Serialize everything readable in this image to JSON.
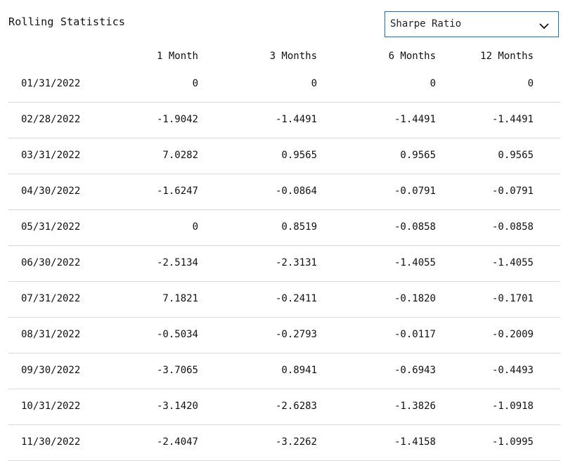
{
  "title": "Rolling Statistics",
  "metric_select": {
    "selected": "Sharpe Ratio",
    "icon": "chevron-down-icon"
  },
  "table": {
    "columns": [
      "",
      "1 Month",
      "3 Months",
      "6 Months",
      "12 Months"
    ],
    "rows": [
      [
        "01/31/2022",
        "0",
        "0",
        "0",
        "0"
      ],
      [
        "02/28/2022",
        "-1.9042",
        "-1.4491",
        "-1.4491",
        "-1.4491"
      ],
      [
        "03/31/2022",
        "7.0282",
        "0.9565",
        "0.9565",
        "0.9565"
      ],
      [
        "04/30/2022",
        "-1.6247",
        "-0.0864",
        "-0.0791",
        "-0.0791"
      ],
      [
        "05/31/2022",
        "0",
        "0.8519",
        "-0.0858",
        "-0.0858"
      ],
      [
        "06/30/2022",
        "-2.5134",
        "-2.3131",
        "-1.4055",
        "-1.4055"
      ],
      [
        "07/31/2022",
        "7.1821",
        "-0.2411",
        "-0.1820",
        "-0.1701"
      ],
      [
        "08/31/2022",
        "-0.5034",
        "-0.2793",
        "-0.0117",
        "-0.2009"
      ],
      [
        "09/30/2022",
        "-3.7065",
        "0.8941",
        "-0.6943",
        "-0.4493"
      ],
      [
        "10/31/2022",
        "-3.1420",
        "-2.6283",
        "-1.3826",
        "-1.0918"
      ],
      [
        "11/30/2022",
        "-2.4047",
        "-3.2262",
        "-1.4158",
        "-1.0995"
      ]
    ]
  },
  "colors": {
    "accent_border": "#1f6fb8",
    "row_divider": "#d9d9d9"
  }
}
